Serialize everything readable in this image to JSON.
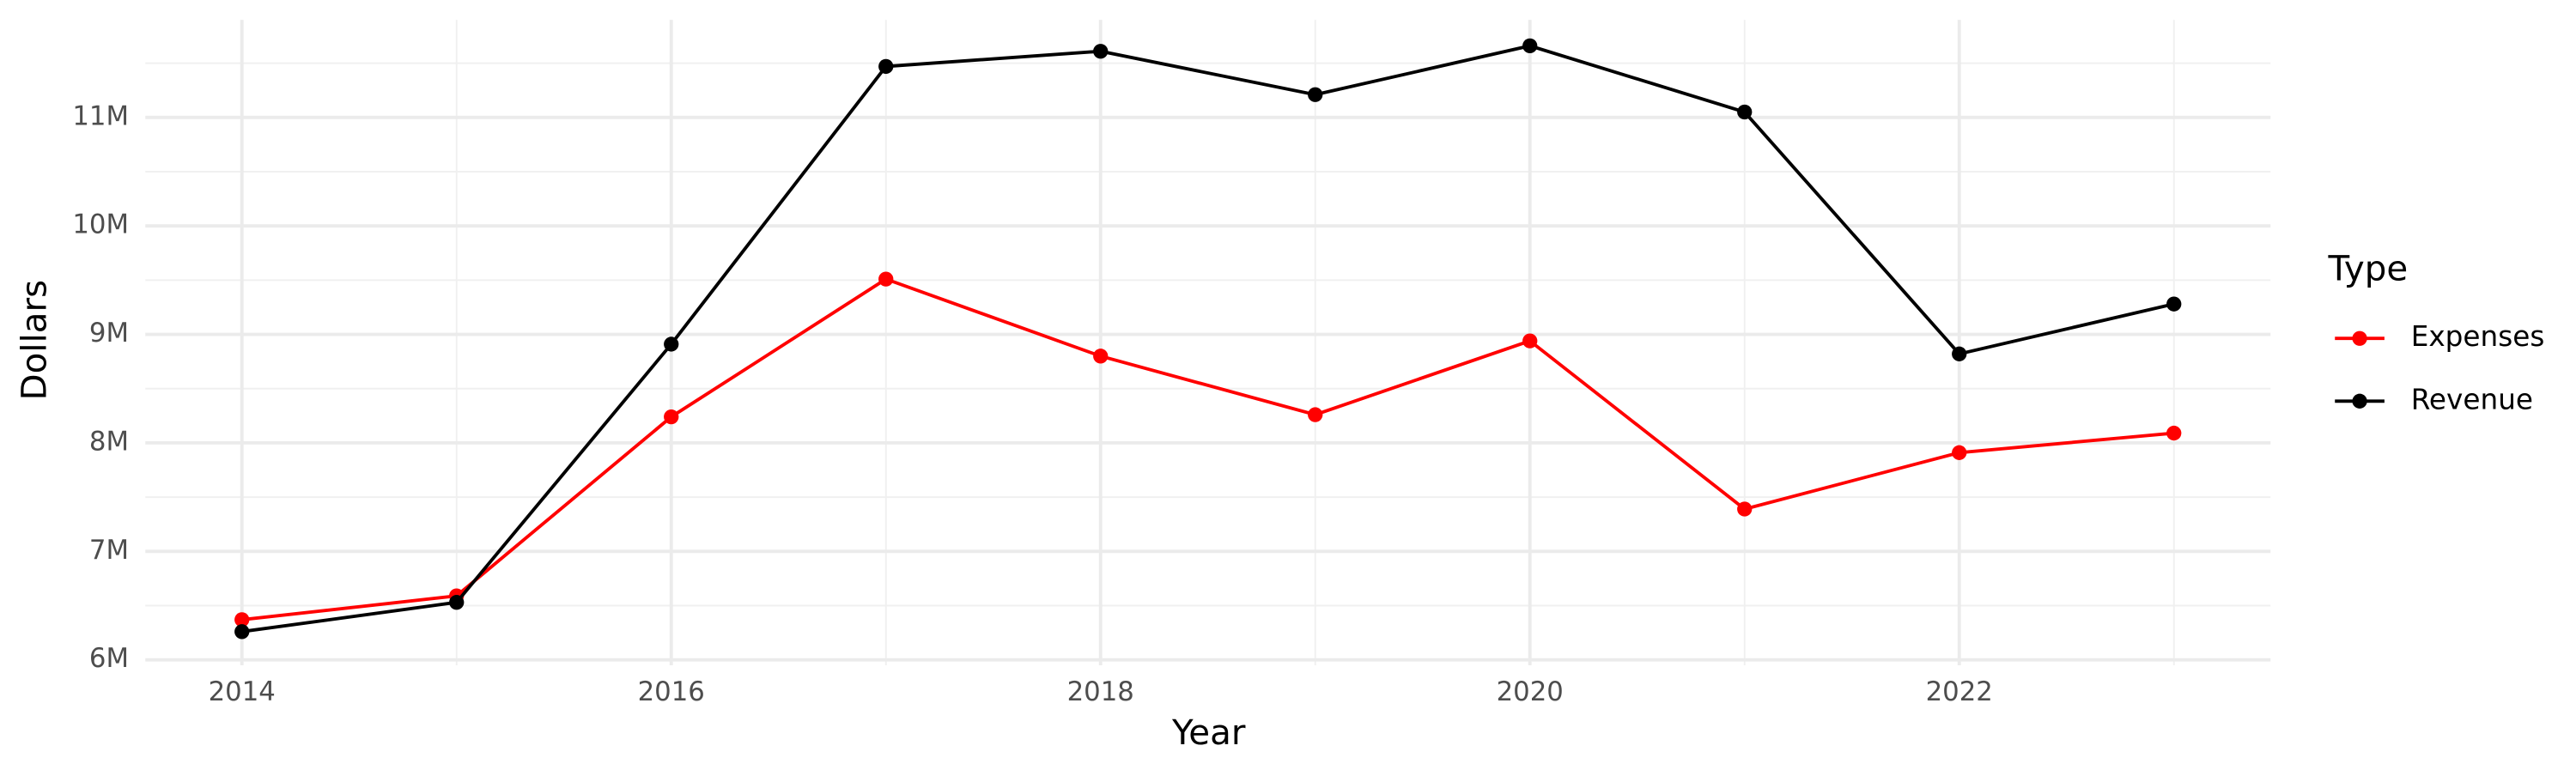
{
  "chart_data": {
    "type": "line",
    "x_label": "Year",
    "y_label": "Dollars",
    "x": [
      2014,
      2015,
      2016,
      2017,
      2018,
      2019,
      2020,
      2021,
      2022,
      2023
    ],
    "series": [
      {
        "name": "Expenses",
        "color": "#ff0000",
        "values": [
          6370000,
          6590000,
          8240000,
          9510000,
          8800000,
          8260000,
          8940000,
          7390000,
          7910000,
          8090000
        ]
      },
      {
        "name": "Revenue",
        "color": "#000000",
        "values": [
          6260000,
          6530000,
          8910000,
          11470000,
          11610000,
          11210000,
          11660000,
          11050000,
          8820000,
          9280000
        ]
      }
    ],
    "xlim": [
      2013.55,
      2023.45
    ],
    "xticks": [
      2014,
      2016,
      2018,
      2020,
      2022
    ],
    "ylim": [
      5950000,
      11900000
    ],
    "yticks": [
      {
        "value": 6000000,
        "label": "6M"
      },
      {
        "value": 7000000,
        "label": "7M"
      },
      {
        "value": 8000000,
        "label": "8M"
      },
      {
        "value": 9000000,
        "label": "9M"
      },
      {
        "value": 10000000,
        "label": "10M"
      },
      {
        "value": 11000000,
        "label": "11M"
      }
    ],
    "grid": true,
    "minor_grid": true,
    "legend_title": "Type",
    "legend_position": "right"
  }
}
